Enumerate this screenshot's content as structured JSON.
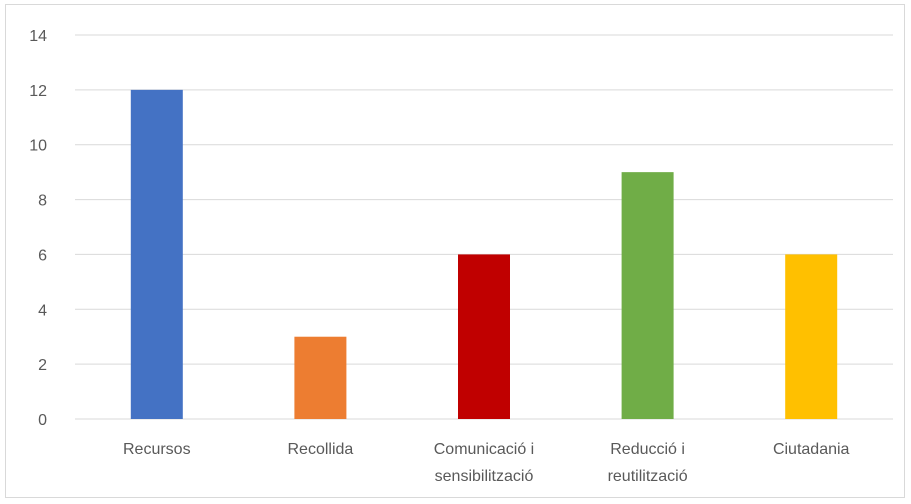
{
  "chart_data": {
    "type": "bar",
    "title": "",
    "xlabel": "",
    "ylabel": "",
    "ylim": [
      0,
      14
    ],
    "yticks": [
      0,
      2,
      4,
      6,
      8,
      10,
      12,
      14
    ],
    "grid": true,
    "legend": "none",
    "categories": [
      [
        "Recursos"
      ],
      [
        "Recollida"
      ],
      [
        "Comunicació i",
        "sensibilització"
      ],
      [
        "Reducció i",
        "reutilització"
      ],
      [
        "Ciutadania"
      ]
    ],
    "values": [
      12,
      3,
      6,
      9,
      6
    ],
    "colors": [
      "#4472c4",
      "#ed7d31",
      "#c00000",
      "#70ad47",
      "#ffc000"
    ]
  }
}
